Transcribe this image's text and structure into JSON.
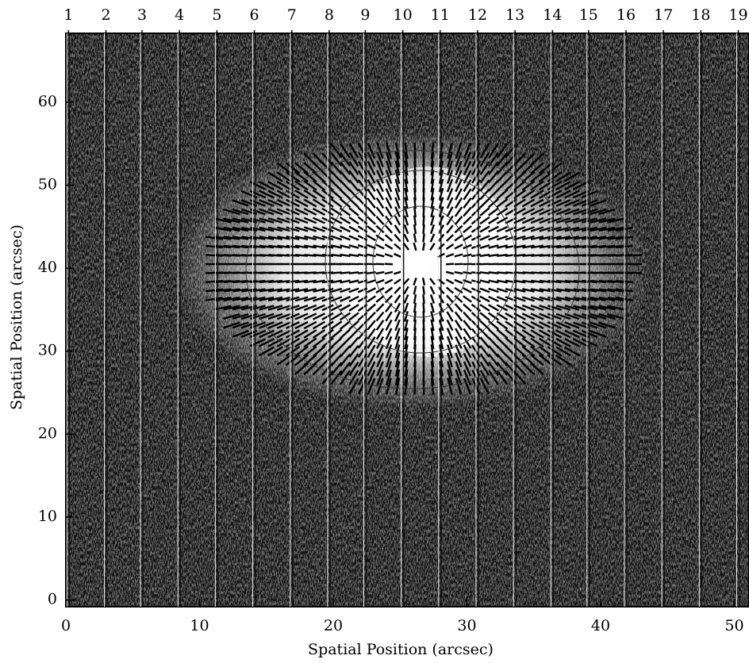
{
  "chart_data": {
    "type": "image",
    "xlabel": "Spatial Position (arcsec)",
    "ylabel": "Spatial Position (arcsec)",
    "xlim": [
      0,
      51.1
    ],
    "ylim": [
      -0.8,
      68.3
    ],
    "xticks": [
      0,
      10,
      20,
      30,
      40,
      50
    ],
    "yticks": [
      0,
      10,
      20,
      30,
      40,
      50,
      60
    ],
    "slits": [
      {
        "value": 0.2,
        "label": "1"
      },
      {
        "value": 3.0,
        "label": "2"
      },
      {
        "value": 5.7,
        "label": "3"
      },
      {
        "value": 8.5,
        "label": "4"
      },
      {
        "value": 11.3,
        "label": "5"
      },
      {
        "value": 14.1,
        "label": "6"
      },
      {
        "value": 16.9,
        "label": "7"
      },
      {
        "value": 19.7,
        "label": "8"
      },
      {
        "value": 22.4,
        "label": "9"
      },
      {
        "value": 25.2,
        "label": "10"
      },
      {
        "value": 28.0,
        "label": "11"
      },
      {
        "value": 30.8,
        "label": "12"
      },
      {
        "value": 33.6,
        "label": "13"
      },
      {
        "value": 36.4,
        "label": "14"
      },
      {
        "value": 39.1,
        "label": "15"
      },
      {
        "value": 41.9,
        "label": "16"
      },
      {
        "value": 44.7,
        "label": "17"
      },
      {
        "value": 47.5,
        "label": "18"
      },
      {
        "value": 50.3,
        "label": "19"
      }
    ]
  }
}
